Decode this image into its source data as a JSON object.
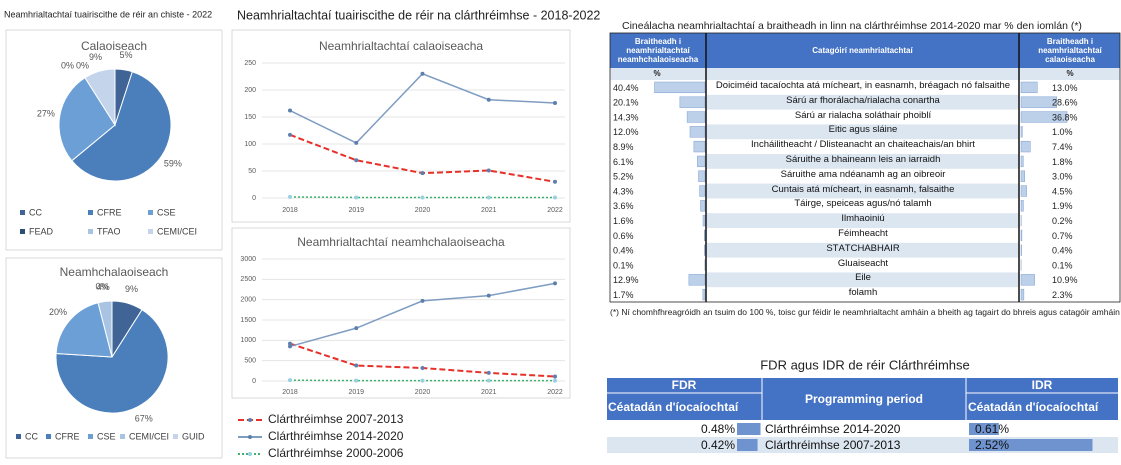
{
  "header": {
    "title": "Neamhrialtachtaí tuairiscithe de réir an chiste - 2022"
  },
  "section_title": "Neamhrialtachtaí tuairiscithe de réir na clárthréimhse - 2018-2022",
  "chart_data": [
    {
      "type": "pie",
      "title": "Calaoiseach",
      "categories": [
        "CC",
        "CFRE",
        "CSE",
        "FEAD",
        "TFAO",
        "CEMI/CEI"
      ],
      "values": [
        5,
        59,
        27,
        0,
        0,
        9
      ],
      "value_labels": [
        "5%",
        "59%",
        "27%",
        "0%",
        "0%",
        "9%"
      ],
      "colors": [
        "#3f6495",
        "#4a7fbc",
        "#6b9fd6",
        "#2e4d75",
        "#a9c3e3",
        "#c3d4eb"
      ]
    },
    {
      "type": "pie",
      "title": "Neamhchalaoiseach",
      "categories": [
        "CC",
        "CFRE",
        "CSE",
        "CEMI/CEI",
        "GUID"
      ],
      "values": [
        9,
        67,
        20,
        4,
        0
      ],
      "value_labels": [
        "9%",
        "67%",
        "20%",
        "4%",
        "0%"
      ],
      "colors": [
        "#3f6495",
        "#4a7fbc",
        "#6b9fd6",
        "#a9c3e3",
        "#c3d4eb"
      ]
    },
    {
      "type": "line",
      "title": "Neamhrialtachtaí calaoiseacha",
      "categories": [
        "2018",
        "2019",
        "2020",
        "2021",
        "2022"
      ],
      "series": [
        {
          "name": "Clárthréimhse 2007-2013",
          "color": "#e8302a",
          "line_style": "dashed",
          "values": [
            117,
            70,
            46,
            51,
            30
          ]
        },
        {
          "name": "Clárthréimhse 2014-2020",
          "color": "#7f9cc2",
          "line_style": "solid",
          "values": [
            162,
            102,
            230,
            182,
            176
          ]
        },
        {
          "name": "Clárthréimhse 2000-2006",
          "color": "#3cb371",
          "line_style": "dotted",
          "values": [
            2,
            1,
            1,
            1,
            1
          ]
        }
      ],
      "ylim": [
        0,
        250
      ],
      "yticks": [
        0,
        50,
        100,
        150,
        200,
        250
      ],
      "grid": true
    },
    {
      "type": "line",
      "title": "Neamhrialtachtaí neamhchalaoiseacha",
      "categories": [
        "2018",
        "2019",
        "2020",
        "2021",
        "2022"
      ],
      "series": [
        {
          "name": "Clárthréimhse 2007-2013",
          "color": "#e8302a",
          "line_style": "dashed",
          "values": [
            920,
            380,
            320,
            200,
            110
          ]
        },
        {
          "name": "Clárthréimhse 2014-2020",
          "color": "#7f9cc2",
          "line_style": "solid",
          "values": [
            850,
            1300,
            1970,
            2100,
            2400
          ]
        },
        {
          "name": "Clárthréimhse 2000-2006",
          "color": "#3cb371",
          "line_style": "dotted",
          "values": [
            20,
            10,
            10,
            10,
            10
          ]
        }
      ],
      "ylim": [
        0,
        3000
      ],
      "yticks": [
        0,
        500,
        1000,
        1500,
        2000,
        2500,
        3000
      ],
      "grid": true
    }
  ],
  "table": {
    "title": "Cineálacha neamhrialtachtaí a braitheadh in linn na clárthréimhse 2014-2020 mar % den iomlán (*)",
    "headers": [
      "Braitheadh i neamhrialtachtaí neamhchalaoiseacha",
      "Catagóirí neamhrialtachtaí",
      "Braitheadh i neamhrialtachtaí calaoiseacha"
    ],
    "units": [
      "%",
      "%"
    ],
    "bar_color": "#bcd0ea",
    "rows": [
      {
        "non_fraud": 40.4,
        "non_fraud_label": "40.4%",
        "category": "Doiciméid tacaíochta atá mícheart, in easnamh, bréagach nó falsaithe",
        "fraud": 13.0,
        "fraud_label": "13.0%"
      },
      {
        "non_fraud": 20.1,
        "non_fraud_label": "20.1%",
        "category": "Sárú ar fhorálacha/rialacha conartha",
        "fraud": 28.6,
        "fraud_label": "28.6%"
      },
      {
        "non_fraud": 14.3,
        "non_fraud_label": "14.3%",
        "category": "Sárú ar rialacha soláthair phoiblí",
        "fraud": 36.8,
        "fraud_label": "36.8%"
      },
      {
        "non_fraud": 12.0,
        "non_fraud_label": "12.0%",
        "category": "Eitic agus sláine",
        "fraud": 1.0,
        "fraud_label": "1.0%"
      },
      {
        "non_fraud": 8.9,
        "non_fraud_label": "8.9%",
        "category": "Incháilitheacht / Dlisteanacht an chaiteachais/an bhirt",
        "fraud": 7.4,
        "fraud_label": "7.4%"
      },
      {
        "non_fraud": 6.1,
        "non_fraud_label": "6.1%",
        "category": "Sáruithe a bhaineann leis an iarraidh",
        "fraud": 1.8,
        "fraud_label": "1.8%"
      },
      {
        "non_fraud": 5.2,
        "non_fraud_label": "5.2%",
        "category": "Sáruithe ama ndéanamh ag an oibreoir",
        "fraud": 3.0,
        "fraud_label": "3.0%"
      },
      {
        "non_fraud": 4.3,
        "non_fraud_label": "4.3%",
        "category": "Cuntais atá mícheart, in easnamh, falsaithe",
        "fraud": 4.5,
        "fraud_label": "4.5%"
      },
      {
        "non_fraud": 3.6,
        "non_fraud_label": "3.6%",
        "category": "Táirge, speiceas agus/nó talamh",
        "fraud": 1.9,
        "fraud_label": "1.9%"
      },
      {
        "non_fraud": 1.6,
        "non_fraud_label": "1.6%",
        "category": "Ilmhaoiniú",
        "fraud": 0.2,
        "fraud_label": "0.2%"
      },
      {
        "non_fraud": 0.6,
        "non_fraud_label": "0.6%",
        "category": "Féimheacht",
        "fraud": 0.7,
        "fraud_label": "0.7%"
      },
      {
        "non_fraud": 0.4,
        "non_fraud_label": "0.4%",
        "category": "STÁTCHABHAIR",
        "fraud": 0.4,
        "fraud_label": "0.4%"
      },
      {
        "non_fraud": 0.1,
        "non_fraud_label": "0.1%",
        "category": "Gluaiseacht",
        "fraud": 0.1,
        "fraud_label": "0.1%"
      },
      {
        "non_fraud": 12.9,
        "non_fraud_label": "12.9%",
        "category": "Eile",
        "fraud": 10.9,
        "fraud_label": "10.9%"
      },
      {
        "non_fraud": 1.7,
        "non_fraud_label": "1.7%",
        "category": "folamh",
        "fraud": 2.3,
        "fraud_label": "2.3%"
      }
    ],
    "footnote": "(*) Ní chomhfhreagróidh an tsuim do 100 %, toisc gur féidir le neamhrialtacht amháin a bheith ag tagairt do bhreis agus catagóir amháin"
  },
  "rate_table": {
    "title": "FDR agus IDR de réir Clárthréimhse",
    "headers": [
      "FDR",
      "Programming period",
      "IDR"
    ],
    "subheaders": [
      "Céatadán d'íocaíochtaí",
      "Céatadán d'íocaíochtaí"
    ],
    "bar_color": "#6f93cf",
    "rows": [
      {
        "fdr": 0.48,
        "fdr_label": "0.48%",
        "period": "Clárthréimhse 2014-2020",
        "idr": 0.61,
        "idr_label": "0.61%"
      },
      {
        "fdr": 0.42,
        "fdr_label": "0.42%",
        "period": "Clárthréimhse 2007-2013",
        "idr": 2.52,
        "idr_label": "2.52%"
      }
    ]
  }
}
